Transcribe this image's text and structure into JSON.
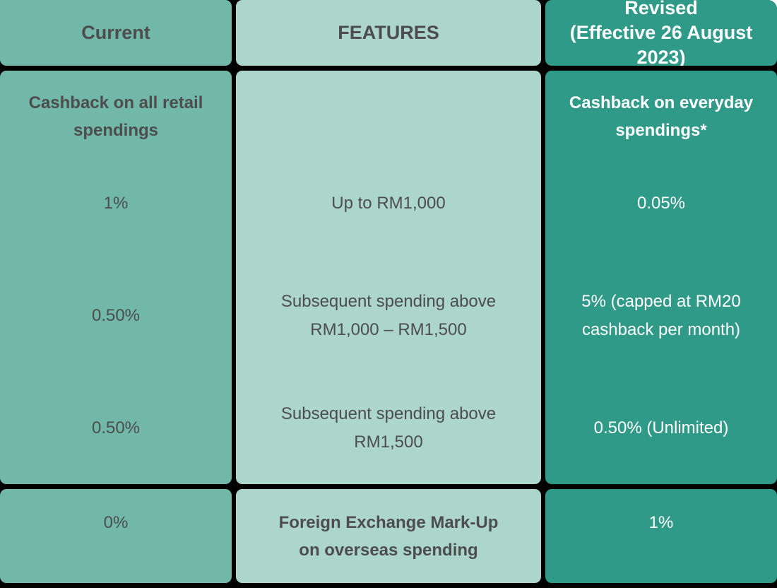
{
  "table": {
    "header": {
      "current": "Current",
      "features": "FEATURES",
      "revised": "Revised\n(Effective 26 August 2023)"
    },
    "main": {
      "current": {
        "subheader": "Cashback on all retail\nspendings",
        "rows": [
          "1%",
          "0.50%",
          "0.50%"
        ]
      },
      "features": {
        "subheader": "",
        "rows": [
          "Up to RM1,000",
          "Subsequent spending above\nRM1,000 – RM1,500",
          "Subsequent spending above\nRM1,500"
        ]
      },
      "revised": {
        "subheader": "Cashback on everyday\nspendings*",
        "rows": [
          "0.05%",
          "5% (capped at RM20\ncashback per month)",
          "0.50% (Unlimited)"
        ]
      }
    },
    "footer": {
      "current": "0%",
      "features": "Foreign Exchange Mark-Up\non overseas spending",
      "revised": "1%"
    },
    "colors": {
      "current_bg": "#71B8A8",
      "features_bg": "#ACD6CC",
      "revised_bg": "#2F9A88",
      "text_dark": "#4D4D4D",
      "text_light": "#FFFFFF",
      "divider": "#000000"
    }
  }
}
